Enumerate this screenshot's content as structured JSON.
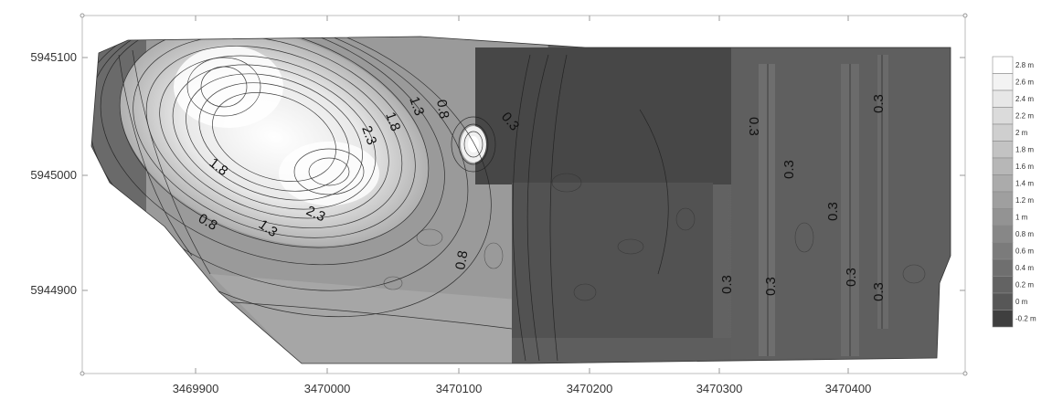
{
  "map": {
    "x_ticks": [
      "3469900",
      "3470000",
      "3470100",
      "3470200",
      "3470300",
      "3470400"
    ],
    "y_ticks": [
      "5945100",
      "5945000",
      "5944900"
    ],
    "contour_labels": [
      "1.3",
      "0.8",
      "1.8",
      "2.3",
      "0.3",
      "1.8",
      "2.3",
      "1.3",
      "0.8",
      "0.8",
      "0.3",
      "0.3",
      "0.3",
      "0.3",
      "0.3",
      "0.3",
      "0.3",
      "0.3"
    ]
  },
  "legend": {
    "items": [
      {
        "label": "2.8 m",
        "color": "#ffffff"
      },
      {
        "label": "2.6 m",
        "color": "#f3f3f3"
      },
      {
        "label": "2.4 m",
        "color": "#e7e7e7"
      },
      {
        "label": "2.2 m",
        "color": "#dbdbdb"
      },
      {
        "label": "2 m",
        "color": "#cfcfcf"
      },
      {
        "label": "1.8 m",
        "color": "#c3c3c3"
      },
      {
        "label": "1.6 m",
        "color": "#b7b7b7"
      },
      {
        "label": "1.4 m",
        "color": "#ababab"
      },
      {
        "label": "1.2 m",
        "color": "#9f9f9f"
      },
      {
        "label": "1 m",
        "color": "#939393"
      },
      {
        "label": "0.8 m",
        "color": "#878787"
      },
      {
        "label": "0.6 m",
        "color": "#7b7b7b"
      },
      {
        "label": "0.4 m",
        "color": "#6f6f6f"
      },
      {
        "label": "0.2 m",
        "color": "#636363"
      },
      {
        "label": "0 m",
        "color": "#575757"
      },
      {
        "label": "-0.2 m",
        "color": "#3f3f3f"
      }
    ]
  }
}
